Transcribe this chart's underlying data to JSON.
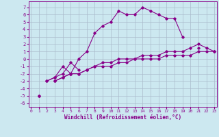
{
  "xlabel": "Windchill (Refroidissement éolien,°C)",
  "background_color": "#cce8f0",
  "grid_color": "#aabbcc",
  "line_color": "#880088",
  "x_ticks": [
    0,
    1,
    2,
    3,
    4,
    5,
    6,
    7,
    8,
    9,
    10,
    11,
    12,
    13,
    14,
    15,
    16,
    17,
    18,
    19,
    20,
    21,
    22,
    23
  ],
  "y_ticks": [
    -6,
    -5,
    -4,
    -3,
    -2,
    -1,
    0,
    1,
    2,
    3,
    4,
    5,
    6,
    7
  ],
  "xlim": [
    -0.3,
    23.3
  ],
  "ylim": [
    -6.5,
    7.8
  ],
  "series": [
    [
      null,
      null,
      -3,
      -2.5,
      -1,
      -2,
      0,
      1,
      3.5,
      4.5,
      5,
      6.5,
      6,
      6,
      7,
      6.5,
      6,
      5.5,
      5.5,
      3,
      null,
      1.5,
      null,
      null
    ],
    [
      null,
      null,
      -3,
      -2.5,
      -2,
      -0.5,
      -1.5,
      null,
      null,
      null,
      null,
      null,
      null,
      null,
      null,
      null,
      null,
      null,
      null,
      null,
      null,
      null,
      null,
      null
    ],
    [
      null,
      -5,
      null,
      -3,
      -2.5,
      -2,
      -2,
      -1.5,
      -1,
      -1,
      -1,
      -0.5,
      -0.5,
      0,
      0,
      0,
      0,
      0.5,
      0.5,
      0.5,
      0.5,
      1,
      1,
      1
    ],
    [
      null,
      -5,
      null,
      -3,
      -2.5,
      -2,
      -2,
      -1.5,
      -1,
      -0.5,
      -0.5,
      0,
      0,
      0,
      0.5,
      0.5,
      0.5,
      1,
      1,
      1,
      1.5,
      2,
      1.5,
      1
    ]
  ]
}
